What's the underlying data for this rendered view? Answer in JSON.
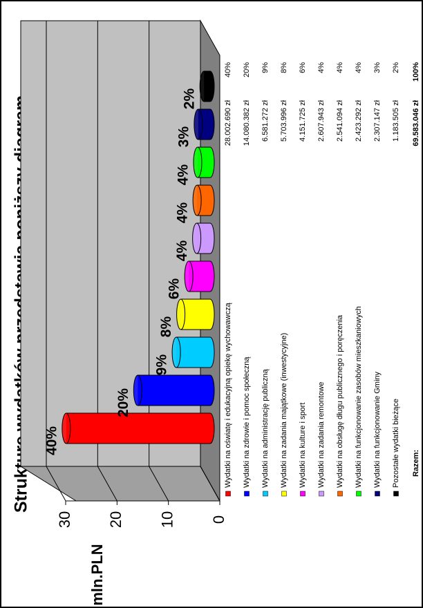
{
  "chart_data": {
    "type": "bar",
    "title": "Strukturę wydatków przedstawia poniższy diagram",
    "y_label": "mln.PLN",
    "categories": [
      "Wydatki na oświatę i edukacyjną opiekę wychowawczą",
      "Wydatki na zdrowie i pomoc społeczną",
      "Wydatki na administrację publiczną",
      "Wydatki na zadania majątkowe (inwestycyjne)",
      "Wydatki na kulture i sport",
      "Wydatki na zadania  remontowe",
      "Wydatki na obsługę długu publicznego i poręczenia",
      "Wydatki na funkcjonowanie zasobów mieszkaniowych",
      "Wydatki na funkcjonowanie Gminy",
      "Pozostałe wydatki bieżące"
    ],
    "values": [
      28.00269,
      14.080382,
      6.581272,
      5.703996,
      4.151725,
      2.607943,
      2.541094,
      2.423292,
      2.307147,
      1.183505
    ],
    "value_labels": [
      "28.002.690  zł",
      "14.080.382  zł",
      "6.581.272  zł",
      "5.703.996  zł",
      "4.151.725  zł",
      "2.607.943  zł",
      "2.541.094  zł",
      "2.423.292  zł",
      "2.307.147  zł",
      "1.183.505  zł"
    ],
    "share_labels": [
      "40%",
      "20%",
      "9%",
      "8%",
      "6%",
      "4%",
      "4%",
      "4%",
      "3%",
      "2%"
    ],
    "colors": [
      "#ff0000",
      "#0000ff",
      "#00ccff",
      "#ffff00",
      "#ff00ff",
      "#cc99ff",
      "#ff6600",
      "#00ff00",
      "#000080",
      "#000000"
    ],
    "total_label": "Razem:",
    "total_value_label": "69.583.046  zł",
    "total_share_label": "100%",
    "ylim": [
      0,
      30
    ],
    "yticks": [
      0,
      10,
      20,
      30
    ],
    "grid": true
  }
}
